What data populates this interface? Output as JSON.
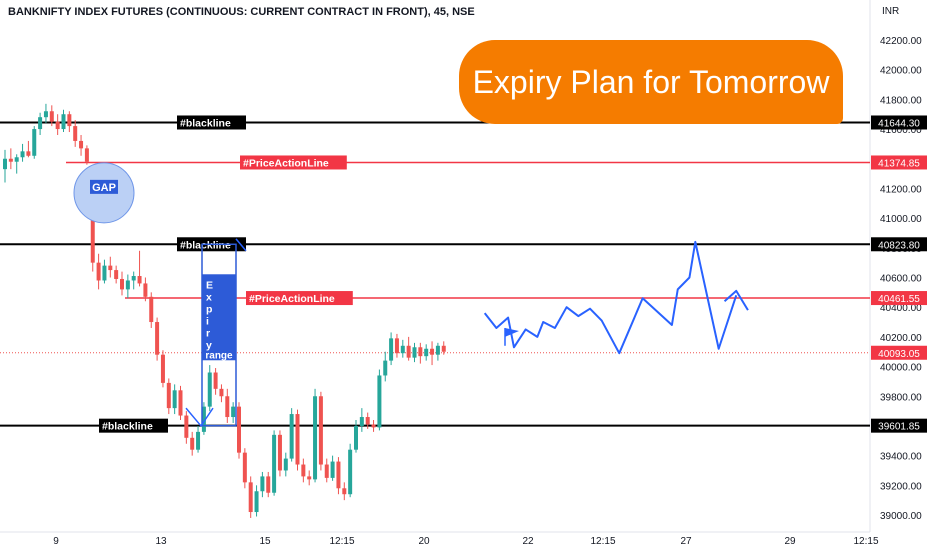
{
  "header": {
    "title": "BANKNIFTY INDEX FUTURES (CONTINUOUS: CURRENT CONTRACT IN FRONT), 45, NSE",
    "currency": "INR"
  },
  "banner": {
    "text": "Expiry Plan for Tomorrow",
    "color": "#f57c00"
  },
  "colors": {
    "bull": "#26a69a",
    "bear": "#ef5350",
    "blackline": "#000000",
    "price_action": "#f23645",
    "projection": "#2962ff",
    "range_box": "#2d5bd7",
    "gap_fill": "#bbd0f5"
  },
  "chart_data": {
    "type": "candlestick",
    "title": "BANKNIFTY INDEX FUTURES (CONTINUOUS: CURRENT CONTRACT IN FRONT), 45, NSE",
    "y_unit": "INR",
    "ylim": [
      38940,
      42330
    ],
    "y_ticks": [
      "42200.00",
      "42000.00",
      "41800.00",
      "41600.00",
      "41400.00",
      "41200.00",
      "41000.00",
      "40800.00",
      "40600.00",
      "40400.00",
      "40200.00",
      "40000.00",
      "39800.00",
      "39600.00",
      "39400.00",
      "39200.00",
      "39000.00"
    ],
    "x_ticks": [
      "9",
      "13",
      "15",
      "12:15",
      "20",
      "22",
      "12:15",
      "27",
      "29",
      "12:15"
    ],
    "grid": false,
    "candles": [
      {
        "o": 41330,
        "h": 41460,
        "l": 41240,
        "c": 41400
      },
      {
        "o": 41400,
        "h": 41470,
        "l": 41330,
        "c": 41380
      },
      {
        "o": 41380,
        "h": 41430,
        "l": 41300,
        "c": 41410
      },
      {
        "o": 41410,
        "h": 41500,
        "l": 41380,
        "c": 41450
      },
      {
        "o": 41450,
        "h": 41520,
        "l": 41410,
        "c": 41420
      },
      {
        "o": 41420,
        "h": 41620,
        "l": 41400,
        "c": 41600
      },
      {
        "o": 41600,
        "h": 41710,
        "l": 41560,
        "c": 41680
      },
      {
        "o": 41680,
        "h": 41770,
        "l": 41640,
        "c": 41720
      },
      {
        "o": 41720,
        "h": 41760,
        "l": 41620,
        "c": 41650
      },
      {
        "o": 41650,
        "h": 41700,
        "l": 41560,
        "c": 41600
      },
      {
        "o": 41600,
        "h": 41730,
        "l": 41580,
        "c": 41700
      },
      {
        "o": 41700,
        "h": 41720,
        "l": 41580,
        "c": 41620
      },
      {
        "o": 41620,
        "h": 41660,
        "l": 41480,
        "c": 41520
      },
      {
        "o": 41520,
        "h": 41560,
        "l": 41420,
        "c": 41470
      },
      {
        "o": 41470,
        "h": 41490,
        "l": 41360,
        "c": 41380
      },
      {
        "o": 41010,
        "h": 41070,
        "l": 40640,
        "c": 40700
      },
      {
        "o": 40700,
        "h": 40760,
        "l": 40520,
        "c": 40580
      },
      {
        "o": 40580,
        "h": 40720,
        "l": 40560,
        "c": 40680
      },
      {
        "o": 40680,
        "h": 40740,
        "l": 40600,
        "c": 40650
      },
      {
        "o": 40650,
        "h": 40680,
        "l": 40560,
        "c": 40590
      },
      {
        "o": 40590,
        "h": 40640,
        "l": 40480,
        "c": 40520
      },
      {
        "o": 40520,
        "h": 40620,
        "l": 40460,
        "c": 40580
      },
      {
        "o": 40580,
        "h": 40640,
        "l": 40520,
        "c": 40610
      },
      {
        "o": 40610,
        "h": 40780,
        "l": 40540,
        "c": 40560
      },
      {
        "o": 40560,
        "h": 40600,
        "l": 40440,
        "c": 40470
      },
      {
        "o": 40470,
        "h": 40500,
        "l": 40260,
        "c": 40300
      },
      {
        "o": 40300,
        "h": 40330,
        "l": 40040,
        "c": 40080
      },
      {
        "o": 40080,
        "h": 40110,
        "l": 39860,
        "c": 39890
      },
      {
        "o": 39890,
        "h": 39920,
        "l": 39680,
        "c": 39720
      },
      {
        "o": 39720,
        "h": 39880,
        "l": 39680,
        "c": 39840
      },
      {
        "o": 39840,
        "h": 39870,
        "l": 39640,
        "c": 39670
      },
      {
        "o": 39670,
        "h": 39700,
        "l": 39480,
        "c": 39520
      },
      {
        "o": 39520,
        "h": 39560,
        "l": 39400,
        "c": 39440
      },
      {
        "o": 39440,
        "h": 39600,
        "l": 39420,
        "c": 39560
      },
      {
        "o": 39560,
        "h": 39760,
        "l": 39540,
        "c": 39730
      },
      {
        "o": 39730,
        "h": 40010,
        "l": 39700,
        "c": 39960
      },
      {
        "o": 39960,
        "h": 39990,
        "l": 39810,
        "c": 39850
      },
      {
        "o": 39850,
        "h": 39880,
        "l": 39760,
        "c": 39800
      },
      {
        "o": 39800,
        "h": 39850,
        "l": 39620,
        "c": 39660
      },
      {
        "o": 39660,
        "h": 39760,
        "l": 39620,
        "c": 39730
      },
      {
        "o": 39730,
        "h": 39760,
        "l": 39380,
        "c": 39420
      },
      {
        "o": 39420,
        "h": 39450,
        "l": 39180,
        "c": 39220
      },
      {
        "o": 39220,
        "h": 39260,
        "l": 38980,
        "c": 39020
      },
      {
        "o": 39020,
        "h": 39200,
        "l": 38990,
        "c": 39160
      },
      {
        "o": 39160,
        "h": 39290,
        "l": 39120,
        "c": 39260
      },
      {
        "o": 39260,
        "h": 39290,
        "l": 39120,
        "c": 39150
      },
      {
        "o": 39150,
        "h": 39570,
        "l": 39130,
        "c": 39540
      },
      {
        "o": 39540,
        "h": 39570,
        "l": 39260,
        "c": 39300
      },
      {
        "o": 39300,
        "h": 39420,
        "l": 39260,
        "c": 39380
      },
      {
        "o": 39380,
        "h": 39720,
        "l": 39360,
        "c": 39680
      },
      {
        "o": 39680,
        "h": 39710,
        "l": 39300,
        "c": 39340
      },
      {
        "o": 39340,
        "h": 39380,
        "l": 39220,
        "c": 39260
      },
      {
        "o": 39260,
        "h": 39300,
        "l": 39200,
        "c": 39240
      },
      {
        "o": 39240,
        "h": 39850,
        "l": 39220,
        "c": 39800
      },
      {
        "o": 39800,
        "h": 39830,
        "l": 39300,
        "c": 39340
      },
      {
        "o": 39340,
        "h": 39380,
        "l": 39220,
        "c": 39250
      },
      {
        "o": 39250,
        "h": 39400,
        "l": 39230,
        "c": 39360
      },
      {
        "o": 39360,
        "h": 39390,
        "l": 39140,
        "c": 39180
      },
      {
        "o": 39180,
        "h": 39220,
        "l": 39100,
        "c": 39140
      },
      {
        "o": 39140,
        "h": 39480,
        "l": 39120,
        "c": 39440
      },
      {
        "o": 39440,
        "h": 39640,
        "l": 39420,
        "c": 39600
      },
      {
        "o": 39600,
        "h": 39720,
        "l": 39560,
        "c": 39660
      },
      {
        "o": 39660,
        "h": 39690,
        "l": 39580,
        "c": 39610
      },
      {
        "o": 39610,
        "h": 39640,
        "l": 39560,
        "c": 39590
      },
      {
        "o": 39590,
        "h": 39980,
        "l": 39570,
        "c": 39940
      },
      {
        "o": 39940,
        "h": 40100,
        "l": 39900,
        "c": 40040
      },
      {
        "o": 40040,
        "h": 40230,
        "l": 40010,
        "c": 40190
      },
      {
        "o": 40190,
        "h": 40220,
        "l": 40060,
        "c": 40090
      },
      {
        "o": 40090,
        "h": 40180,
        "l": 40060,
        "c": 40140
      },
      {
        "o": 40140,
        "h": 40200,
        "l": 40040,
        "c": 40060
      },
      {
        "o": 40060,
        "h": 40160,
        "l": 40030,
        "c": 40130
      },
      {
        "o": 40130,
        "h": 40160,
        "l": 40020,
        "c": 40070
      },
      {
        "o": 40070,
        "h": 40150,
        "l": 40040,
        "c": 40120
      },
      {
        "o": 40120,
        "h": 40170,
        "l": 40010,
        "c": 40080
      },
      {
        "o": 40080,
        "h": 40160,
        "l": 40040,
        "c": 40140
      },
      {
        "o": 40140,
        "h": 40170,
        "l": 40080,
        "c": 40100
      }
    ],
    "levels": [
      {
        "name": "blackline",
        "label": "#blackline",
        "value": 41644.3,
        "price_label": "41644.30",
        "style": "black"
      },
      {
        "name": "price-action-line",
        "label": "#PriceActionLine",
        "value": 41374.85,
        "price_label": "41374.85",
        "style": "red"
      },
      {
        "name": "blackline",
        "label": "#blackline",
        "value": 40823.8,
        "price_label": "40823.80",
        "style": "black"
      },
      {
        "name": "price-action-line",
        "label": "#PriceActionLine",
        "value": 40461.55,
        "price_label": "40461.55",
        "style": "red"
      },
      {
        "name": "last-price",
        "label": "",
        "value": 40093.05,
        "price_label": "40093.05",
        "style": "last"
      },
      {
        "name": "blackline",
        "label": "#blackline",
        "value": 39601.85,
        "price_label": "39601.85",
        "style": "black"
      }
    ],
    "annotations": {
      "gap_label": "GAP",
      "range_vertical_text": "Expiry",
      "range_label": "range",
      "projection_path": [
        {
          "bar": 82,
          "y": 40360
        },
        {
          "bar": 84,
          "y": 40260
        },
        {
          "bar": 86,
          "y": 40330
        },
        {
          "bar": 87,
          "y": 40130
        },
        {
          "bar": 89,
          "y": 40250
        },
        {
          "bar": 91,
          "y": 40200
        },
        {
          "bar": 92,
          "y": 40300
        },
        {
          "bar": 94,
          "y": 40260
        },
        {
          "bar": 96,
          "y": 40400
        },
        {
          "bar": 98,
          "y": 40340
        },
        {
          "bar": 100,
          "y": 40390
        },
        {
          "bar": 102,
          "y": 40310
        },
        {
          "bar": 105,
          "y": 40090
        },
        {
          "bar": 109,
          "y": 40460
        },
        {
          "bar": 114,
          "y": 40280
        },
        {
          "bar": 115,
          "y": 40520
        },
        {
          "bar": 117,
          "y": 40600
        },
        {
          "bar": 118,
          "y": 40840
        },
        {
          "bar": 122,
          "y": 40120
        },
        {
          "bar": 125,
          "y": 40480
        }
      ],
      "projection_tail": [
        {
          "bar": 123,
          "y": 40440
        },
        {
          "bar": 125,
          "y": 40510
        },
        {
          "bar": 127,
          "y": 40380
        }
      ]
    }
  }
}
